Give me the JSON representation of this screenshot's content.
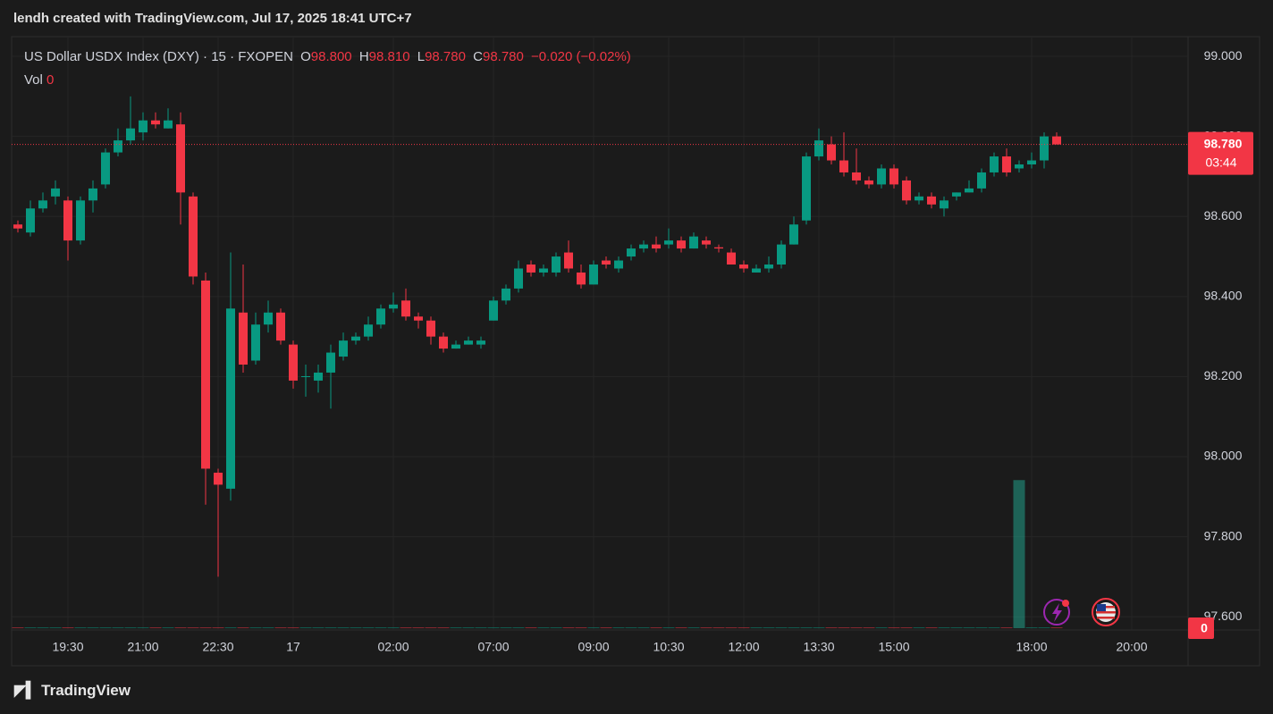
{
  "header": {
    "watermark": "lendh created with TradingView.com, Jul 17, 2025 18:41 UTC+7",
    "footer": "TradingView"
  },
  "chart_data": {
    "type": "candlestick",
    "legend": {
      "symbol": "US Dollar USDX Index (DXY) · 15 · FXOPEN",
      "open_label": "O",
      "open": "98.800",
      "high_label": "H",
      "high": "98.810",
      "low_label": "L",
      "low": "98.780",
      "close_label": "C",
      "close": "98.780",
      "change": "−0.020 (−0.02%)",
      "volume_label": "Vol",
      "volume": "0"
    },
    "price_tag": {
      "price": "98.780",
      "countdown": "03:44"
    },
    "volume_tag": "0",
    "categories": [
      null,
      null,
      null,
      null,
      "19:30",
      null,
      null,
      null,
      null,
      null,
      "21:00",
      null,
      null,
      null,
      null,
      null,
      "22:30",
      null,
      null,
      null,
      null,
      null,
      "17",
      null,
      null,
      null,
      null,
      null,
      null,
      null,
      "02:00",
      null,
      null,
      null,
      null,
      null,
      null,
      null,
      "07:00",
      null,
      null,
      null,
      null,
      null,
      null,
      null,
      "09:00",
      null,
      null,
      null,
      null,
      null,
      "10:30",
      null,
      null,
      null,
      null,
      null,
      "12:00",
      null,
      null,
      null,
      null,
      null,
      "13:30",
      null,
      null,
      null,
      null,
      null,
      "15:00",
      null,
      null,
      null,
      null,
      null,
      null,
      null,
      null,
      null,
      null,
      "18:00",
      null,
      null,
      null,
      null,
      null,
      null,
      null,
      "20:00",
      null,
      null,
      null,
      null
    ],
    "open": [
      98.58,
      98.56,
      98.62,
      98.65,
      98.64,
      98.54,
      98.64,
      98.68,
      98.76,
      98.79,
      98.81,
      98.84,
      98.82,
      98.83,
      98.65,
      98.44,
      97.96,
      97.92,
      98.36,
      98.24,
      98.33,
      98.36,
      98.28,
      98.199,
      98.19,
      98.21,
      98.25,
      98.29,
      98.3,
      98.33,
      98.37,
      98.39,
      98.35,
      98.34,
      98.3,
      98.27,
      98.28,
      98.28,
      98.34,
      98.39,
      98.42,
      98.48,
      98.46,
      98.46,
      98.51,
      98.46,
      98.43,
      98.49,
      98.47,
      98.5,
      98.52,
      98.53,
      98.53,
      98.54,
      98.52,
      98.54,
      98.523,
      98.51,
      98.48,
      98.46,
      98.47,
      98.48,
      98.53,
      98.59,
      98.75,
      98.78,
      98.74,
      98.71,
      98.69,
      98.68,
      98.72,
      98.69,
      98.64,
      98.65,
      98.62,
      98.65,
      98.66,
      98.67,
      98.71,
      98.75,
      98.72,
      98.73,
      98.74,
      98.8,
      null,
      null,
      null,
      null,
      null,
      null,
      null,
      null,
      null,
      null
    ],
    "high": [
      98.59,
      98.64,
      98.66,
      98.69,
      98.65,
      98.65,
      98.69,
      98.77,
      98.82,
      98.9,
      98.86,
      98.86,
      98.87,
      98.86,
      98.66,
      98.46,
      97.97,
      98.51,
      98.48,
      98.36,
      98.39,
      98.37,
      98.29,
      98.23,
      98.23,
      98.28,
      98.31,
      98.31,
      98.35,
      98.38,
      98.41,
      98.42,
      98.36,
      98.35,
      98.31,
      98.29,
      98.3,
      98.3,
      98.4,
      98.43,
      98.49,
      98.49,
      98.48,
      98.51,
      98.54,
      98.48,
      98.49,
      98.5,
      98.5,
      98.53,
      98.54,
      98.55,
      98.57,
      98.55,
      98.56,
      98.55,
      98.53,
      98.52,
      98.49,
      98.48,
      98.5,
      98.54,
      98.6,
      98.76,
      98.82,
      98.8,
      98.81,
      98.77,
      98.7,
      98.73,
      98.73,
      98.7,
      98.66,
      98.66,
      98.65,
      98.66,
      98.69,
      98.72,
      98.76,
      98.77,
      98.74,
      98.76,
      98.81,
      98.81,
      null,
      null,
      null,
      null,
      null,
      null,
      null,
      null,
      null,
      null
    ],
    "low": [
      98.56,
      98.55,
      98.61,
      98.63,
      98.49,
      98.53,
      98.61,
      98.67,
      98.75,
      98.78,
      98.79,
      98.82,
      98.82,
      98.58,
      98.43,
      97.88,
      97.7,
      97.89,
      98.21,
      98.23,
      98.31,
      98.28,
      98.17,
      98.15,
      98.16,
      98.12,
      98.24,
      98.28,
      98.29,
      98.32,
      98.36,
      98.34,
      98.32,
      98.28,
      98.26,
      98.27,
      98.28,
      98.27,
      98.34,
      98.38,
      98.41,
      98.45,
      98.45,
      98.45,
      98.46,
      98.42,
      98.43,
      98.47,
      98.46,
      98.49,
      98.51,
      98.51,
      98.52,
      98.51,
      98.52,
      98.52,
      98.51,
      98.48,
      98.46,
      98.46,
      98.46,
      98.47,
      98.53,
      98.58,
      98.74,
      98.73,
      98.7,
      98.68,
      98.67,
      98.67,
      98.67,
      98.63,
      98.63,
      98.62,
      98.6,
      98.64,
      98.66,
      98.66,
      98.7,
      98.7,
      98.71,
      98.72,
      98.72,
      98.78,
      null,
      null,
      null,
      null,
      null,
      null,
      null,
      null,
      null,
      null
    ],
    "close": [
      98.57,
      98.62,
      98.64,
      98.67,
      98.54,
      98.64,
      98.67,
      98.76,
      98.79,
      98.82,
      98.84,
      98.83,
      98.84,
      98.66,
      98.45,
      97.97,
      97.93,
      98.37,
      98.23,
      98.33,
      98.36,
      98.29,
      98.19,
      98.201,
      98.21,
      98.26,
      98.29,
      98.3,
      98.33,
      98.37,
      98.38,
      98.35,
      98.34,
      98.3,
      98.27,
      98.28,
      98.29,
      98.29,
      98.39,
      98.42,
      98.47,
      98.46,
      98.47,
      98.5,
      98.47,
      98.43,
      98.48,
      98.48,
      98.49,
      98.52,
      98.53,
      98.52,
      98.54,
      98.52,
      98.55,
      98.53,
      98.52,
      98.48,
      98.47,
      98.47,
      98.48,
      98.53,
      98.58,
      98.75,
      98.79,
      98.74,
      98.71,
      98.69,
      98.68,
      98.72,
      98.68,
      98.64,
      98.65,
      98.63,
      98.64,
      98.66,
      98.67,
      98.71,
      98.75,
      98.71,
      98.73,
      98.74,
      98.8,
      98.78,
      null,
      null,
      null,
      null,
      null,
      null,
      null,
      null,
      null,
      null
    ],
    "volume": [
      0,
      0,
      0,
      0,
      0,
      0,
      0,
      0,
      0,
      0,
      0,
      0,
      0,
      0,
      0,
      0,
      0,
      0,
      0,
      0,
      0,
      0,
      0,
      0,
      0,
      0,
      0,
      0,
      0,
      0,
      0,
      0,
      0,
      0,
      0,
      0,
      0,
      0,
      0,
      0,
      0,
      0,
      0,
      0,
      0,
      0,
      0,
      0,
      0,
      0,
      0,
      0,
      0,
      0,
      0,
      0,
      0,
      0,
      0,
      0,
      0,
      0,
      0,
      0,
      0,
      0,
      0,
      0,
      0,
      0,
      0,
      0,
      0,
      0,
      0,
      0,
      0,
      0,
      0,
      0,
      100,
      0,
      0,
      0,
      null,
      null,
      null,
      null,
      null,
      null,
      null,
      null,
      null,
      null
    ],
    "volume_ylim": [
      0,
      400
    ],
    "ylim": [
      97.567,
      99.047
    ],
    "yticks": [
      {
        "value": 97.6,
        "label": "97.600"
      },
      {
        "value": 97.8,
        "label": "97.800"
      },
      {
        "value": 98.0,
        "label": "98.000"
      },
      {
        "value": 98.2,
        "label": "98.200"
      },
      {
        "value": 98.4,
        "label": "98.400"
      },
      {
        "value": 98.6,
        "label": "98.600"
      },
      {
        "value": 98.8,
        "label": "98.800"
      },
      {
        "value": 99.0,
        "label": "99.000"
      }
    ],
    "grid": true,
    "up_color": "#089981",
    "down_color": "#f23645",
    "volume_color": "#22ab94"
  }
}
